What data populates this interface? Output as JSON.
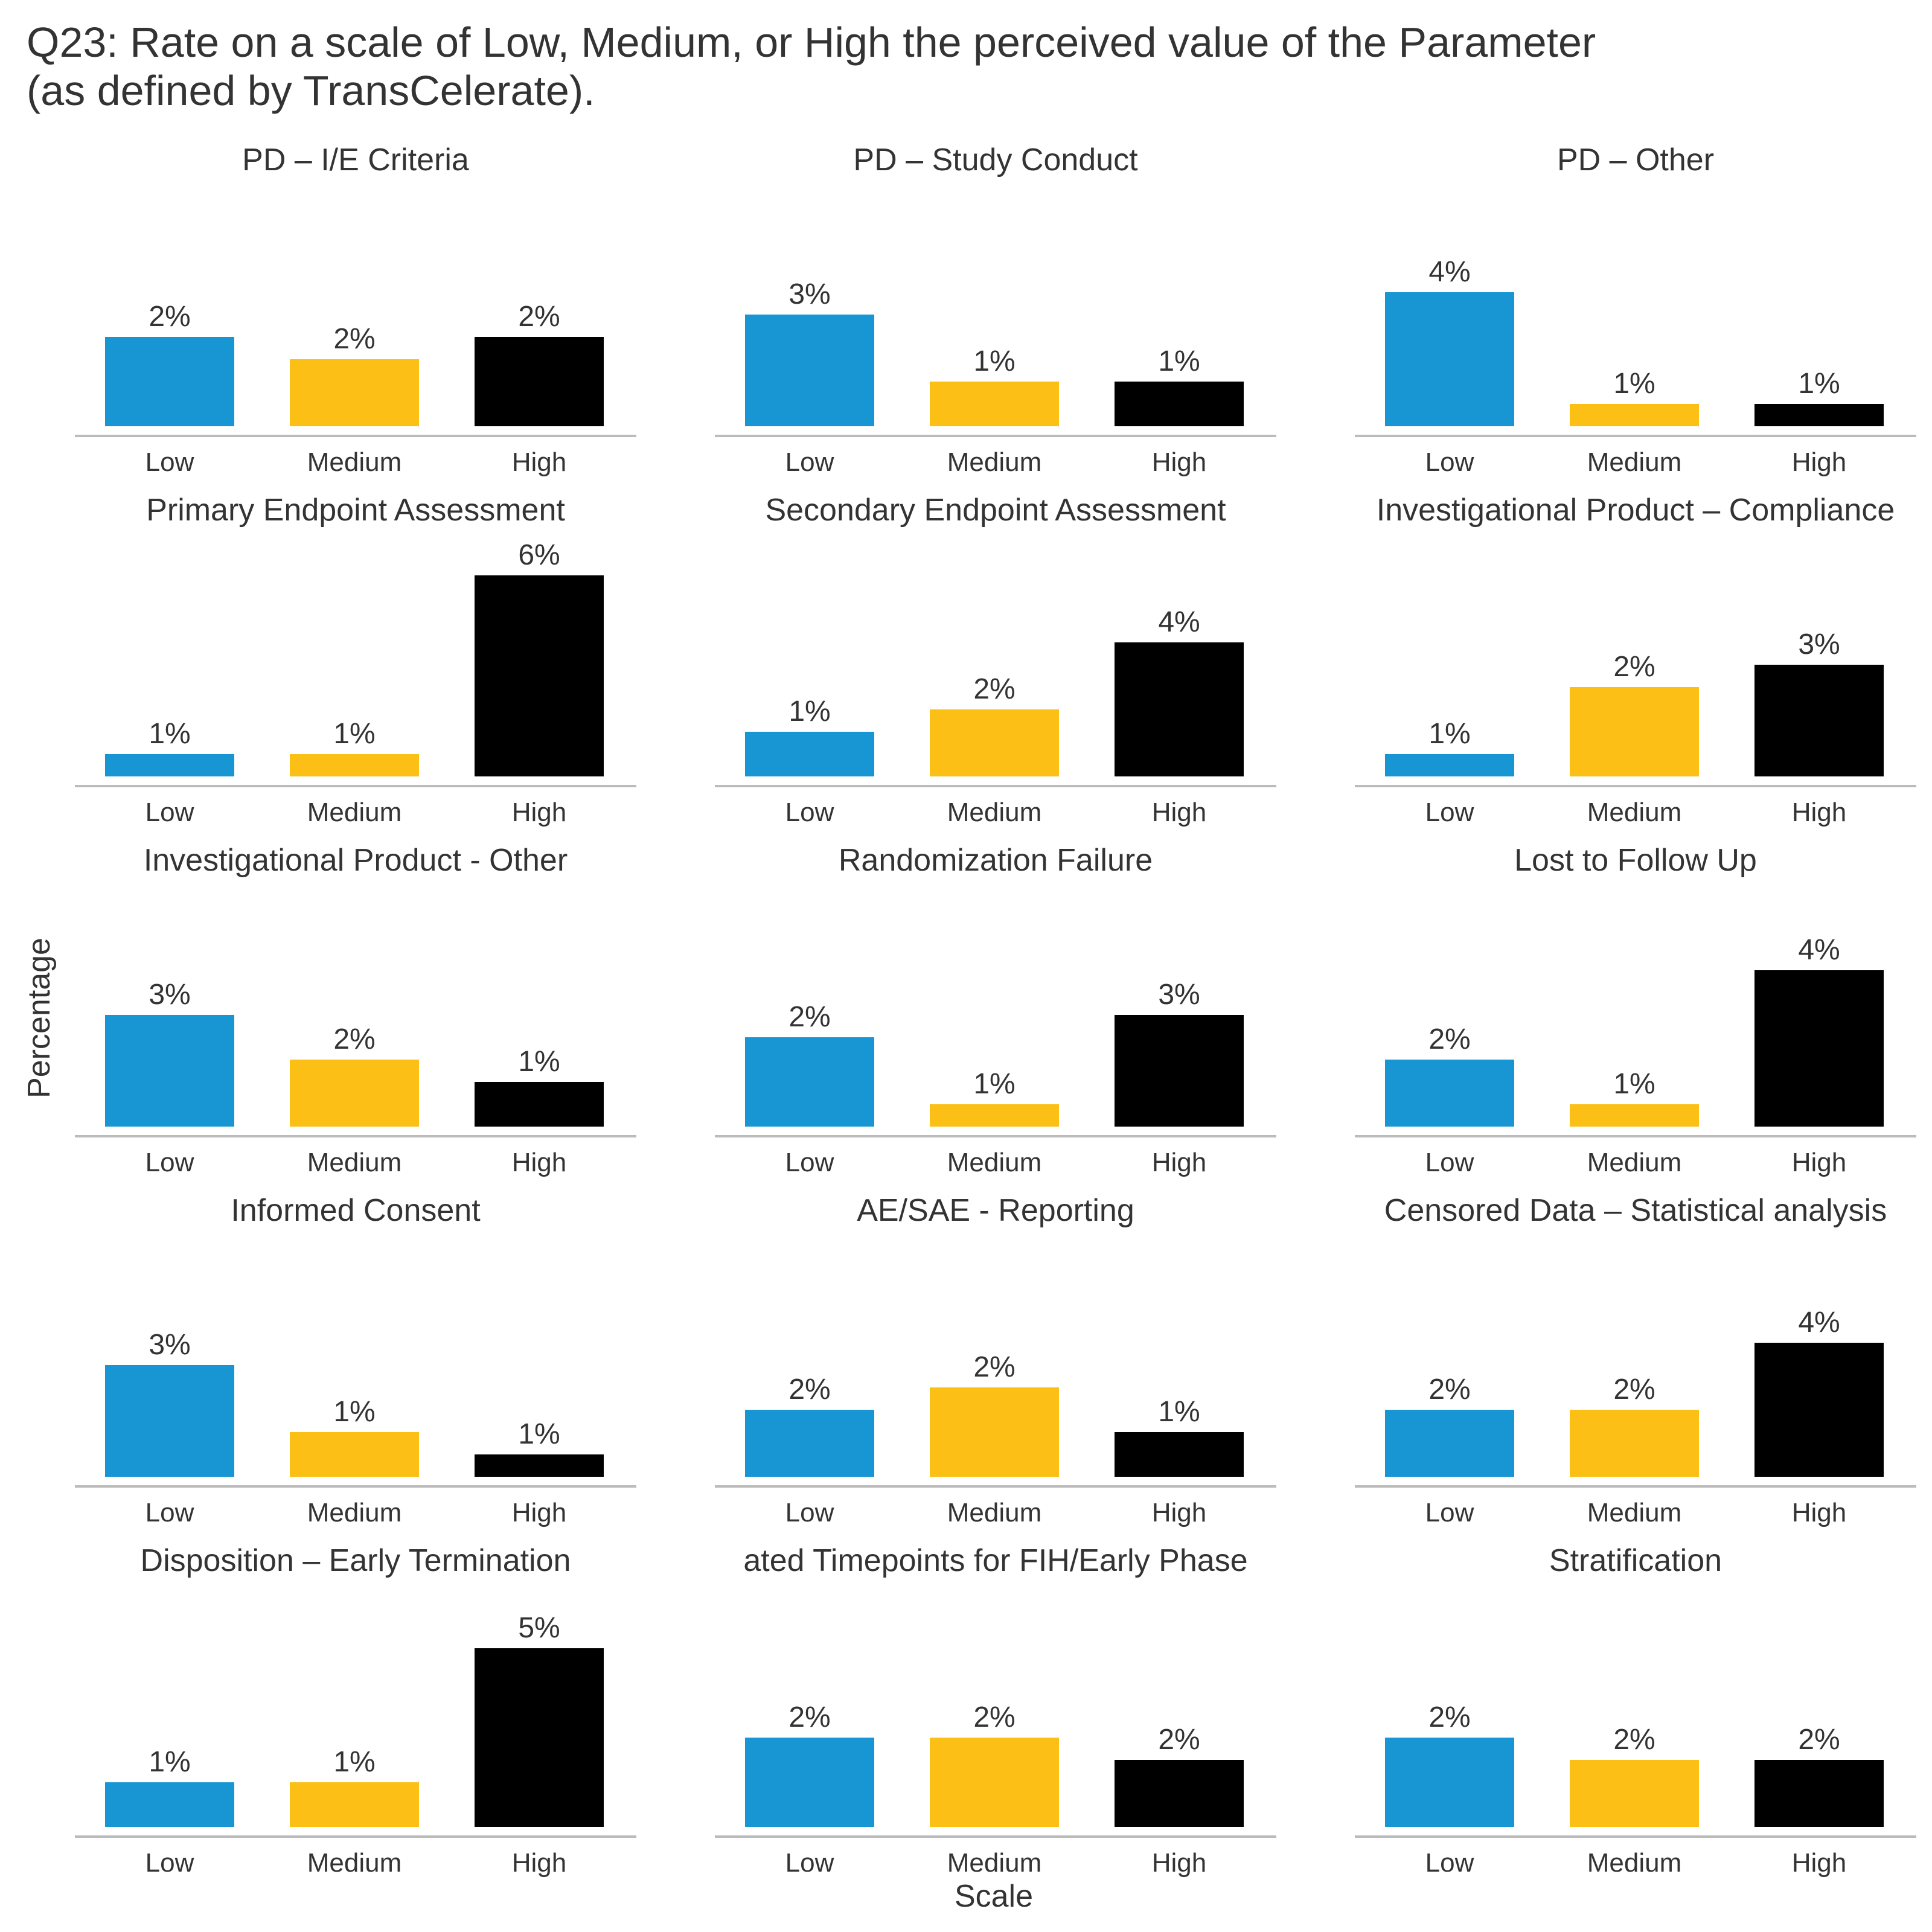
{
  "title_line1": "Q23: Rate on a scale of Low, Medium, or High the perceived value of the Parameter",
  "title_line2": "(as defined by TransCelerate).",
  "colors": {
    "Low": "#1796d3",
    "Medium": "#fbbf15",
    "High": "#000000",
    "baseline": "#bbbbbb",
    "text": "#333333"
  },
  "chart_data": {
    "type": "bar",
    "layout": "faceted 5x3 small multiples",
    "categories": [
      "Low",
      "Medium",
      "High"
    ],
    "xlabel": "Scale",
    "ylabel": "Percentage",
    "value_unit": "%",
    "panels": [
      {
        "title": "PD – I/E Criteria",
        "values": [
          2,
          2,
          2
        ],
        "labels": [
          "2%",
          "2%",
          "2%"
        ],
        "levels": [
          4,
          3,
          4
        ]
      },
      {
        "title": "PD – Study Conduct",
        "values": [
          3,
          1,
          1
        ],
        "labels": [
          "3%",
          "1%",
          "1%"
        ],
        "levels": [
          5,
          2,
          2
        ]
      },
      {
        "title": "PD – Other",
        "values": [
          4,
          1,
          1
        ],
        "labels": [
          "4%",
          "1%",
          "1%"
        ],
        "levels": [
          6,
          1,
          1
        ]
      },
      {
        "title": "Primary Endpoint Assessment",
        "values": [
          1,
          1,
          6
        ],
        "labels": [
          "1%",
          "1%",
          "6%"
        ],
        "levels": [
          1,
          1,
          9
        ]
      },
      {
        "title": "Secondary Endpoint Assessment",
        "values": [
          1,
          2,
          4
        ],
        "labels": [
          "1%",
          "2%",
          "4%"
        ],
        "levels": [
          2,
          3,
          6
        ]
      },
      {
        "title": "Investigational Product – Compliance",
        "values": [
          1,
          2,
          3
        ],
        "labels": [
          "1%",
          "2%",
          "3%"
        ],
        "levels": [
          1,
          4,
          5
        ]
      },
      {
        "title": "Investigational Product - Other",
        "values": [
          3,
          2,
          1
        ],
        "labels": [
          "3%",
          "2%",
          "1%"
        ],
        "levels": [
          5,
          3,
          2
        ]
      },
      {
        "title": "Randomization Failure",
        "values": [
          2,
          1,
          3
        ],
        "labels": [
          "2%",
          "1%",
          "3%"
        ],
        "levels": [
          4,
          1,
          5
        ]
      },
      {
        "title": "Lost to Follow Up",
        "values": [
          2,
          1,
          4
        ],
        "labels": [
          "2%",
          "1%",
          "4%"
        ],
        "levels": [
          3,
          1,
          7
        ]
      },
      {
        "title": "Informed Consent",
        "values": [
          3,
          1,
          1
        ],
        "labels": [
          "3%",
          "1%",
          "1%"
        ],
        "levels": [
          5,
          2,
          1
        ]
      },
      {
        "title": "AE/SAE - Reporting",
        "values": [
          2,
          2,
          1
        ],
        "labels": [
          "2%",
          "2%",
          "1%"
        ],
        "levels": [
          3,
          4,
          2
        ]
      },
      {
        "title": "Censored Data – Statistical analysis",
        "values": [
          2,
          2,
          4
        ],
        "labels": [
          "2%",
          "2%",
          "4%"
        ],
        "levels": [
          3,
          3,
          6
        ]
      },
      {
        "title": "Disposition – Early Termination",
        "values": [
          1,
          1,
          5
        ],
        "labels": [
          "1%",
          "1%",
          "5%"
        ],
        "levels": [
          2,
          2,
          8
        ]
      },
      {
        "title": "ated Timepoints for FIH/Early Phase",
        "values": [
          2,
          2,
          2
        ],
        "labels": [
          "2%",
          "2%",
          "2%"
        ],
        "levels": [
          4,
          4,
          3
        ]
      },
      {
        "title": "Stratification",
        "values": [
          2,
          2,
          2
        ],
        "labels": [
          "2%",
          "2%",
          "2%"
        ],
        "levels": [
          4,
          3,
          3
        ]
      }
    ]
  }
}
